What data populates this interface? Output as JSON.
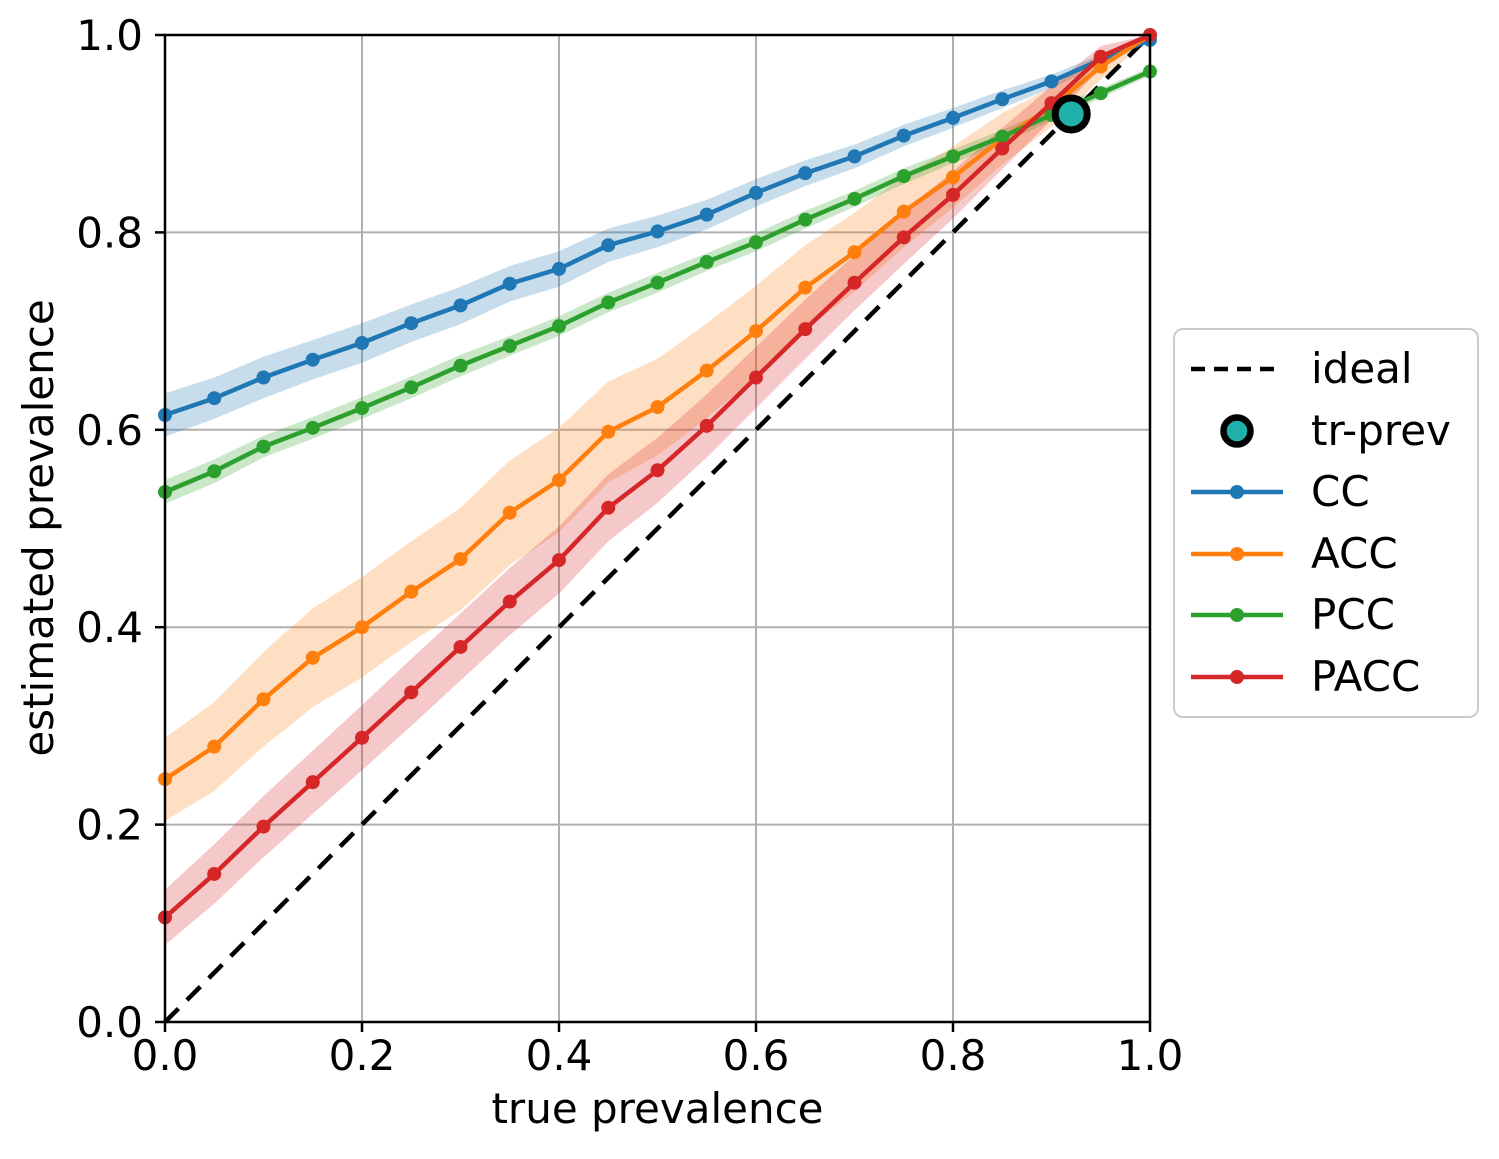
{
  "chart_data": {
    "type": "line",
    "title": "",
    "xlabel": "true prevalence",
    "ylabel": "estimated prevalence",
    "xlim": [
      0.0,
      1.0
    ],
    "ylim": [
      0.0,
      1.0
    ],
    "grid": true,
    "grid_color": "#b0b0b0",
    "axis_color": "#000000",
    "x_ticks": [
      "0.0",
      "0.2",
      "0.4",
      "0.6",
      "0.8",
      "1.0"
    ],
    "y_ticks": [
      "0.0",
      "0.2",
      "0.4",
      "0.6",
      "0.8",
      "1.0"
    ],
    "x": [
      0.0,
      0.05,
      0.1,
      0.15,
      0.2,
      0.25,
      0.3,
      0.35,
      0.4,
      0.45,
      0.5,
      0.55,
      0.6,
      0.65,
      0.7,
      0.75,
      0.8,
      0.85,
      0.9,
      0.95,
      1.0
    ],
    "series": [
      {
        "name": "CC",
        "color": "#1f77b4",
        "values": [
          0.615,
          0.632,
          0.653,
          0.671,
          0.688,
          0.708,
          0.726,
          0.748,
          0.763,
          0.787,
          0.801,
          0.818,
          0.84,
          0.86,
          0.877,
          0.898,
          0.916,
          0.935,
          0.953,
          0.975,
          0.995
        ],
        "band_halfwidth": [
          0.022,
          0.021,
          0.021,
          0.02,
          0.02,
          0.019,
          0.019,
          0.018,
          0.018,
          0.017,
          0.016,
          0.015,
          0.014,
          0.013,
          0.012,
          0.011,
          0.01,
          0.009,
          0.007,
          0.005,
          0.003
        ]
      },
      {
        "name": "ACC",
        "color": "#ff7f0e",
        "values": [
          0.246,
          0.279,
          0.327,
          0.369,
          0.4,
          0.436,
          0.469,
          0.516,
          0.549,
          0.598,
          0.623,
          0.66,
          0.7,
          0.744,
          0.78,
          0.821,
          0.856,
          0.895,
          0.927,
          0.968,
          1.0
        ],
        "band_halfwidth": [
          0.042,
          0.045,
          0.048,
          0.05,
          0.051,
          0.051,
          0.052,
          0.053,
          0.053,
          0.051,
          0.049,
          0.048,
          0.046,
          0.043,
          0.04,
          0.036,
          0.031,
          0.026,
          0.02,
          0.013,
          0.004
        ]
      },
      {
        "name": "PCC",
        "color": "#2ca02c",
        "values": [
          0.537,
          0.558,
          0.583,
          0.602,
          0.622,
          0.643,
          0.665,
          0.685,
          0.705,
          0.729,
          0.749,
          0.77,
          0.79,
          0.813,
          0.834,
          0.857,
          0.877,
          0.897,
          0.919,
          0.941,
          0.963
        ],
        "band_halfwidth": [
          0.012,
          0.012,
          0.011,
          0.011,
          0.011,
          0.011,
          0.011,
          0.01,
          0.01,
          0.01,
          0.01,
          0.009,
          0.009,
          0.009,
          0.008,
          0.008,
          0.007,
          0.007,
          0.006,
          0.005,
          0.004
        ]
      },
      {
        "name": "PACC",
        "color": "#d62728",
        "values": [
          0.106,
          0.15,
          0.198,
          0.243,
          0.288,
          0.334,
          0.38,
          0.426,
          0.468,
          0.521,
          0.559,
          0.604,
          0.653,
          0.702,
          0.749,
          0.795,
          0.838,
          0.885,
          0.931,
          0.978,
          1.0
        ],
        "band_halfwidth": [
          0.028,
          0.03,
          0.031,
          0.032,
          0.033,
          0.034,
          0.034,
          0.034,
          0.034,
          0.034,
          0.033,
          0.032,
          0.031,
          0.03,
          0.028,
          0.027,
          0.024,
          0.021,
          0.017,
          0.011,
          0.004
        ]
      }
    ],
    "ideal_line": {
      "label": "ideal",
      "style": "dashed",
      "color": "#000000",
      "from": [
        0.0,
        0.0
      ],
      "to": [
        1.0,
        1.0
      ]
    },
    "tr_prev_marker": {
      "label": "tr-prev",
      "x": 0.92,
      "y": 0.92,
      "fill": "#20b2aa",
      "edge": "#000000"
    },
    "band_opacity": "0.25",
    "legend_position": "center right, outside axes"
  },
  "legend": {
    "border_color": "#cccccc",
    "entries": [
      {
        "label": "ideal",
        "type": "dashed-line",
        "color": "#000000"
      },
      {
        "label": "tr-prev",
        "type": "circle",
        "color": "#20b2aa"
      },
      {
        "label": "CC",
        "type": "line-dot",
        "color": "#1f77b4"
      },
      {
        "label": "ACC",
        "type": "line-dot",
        "color": "#ff7f0e"
      },
      {
        "label": "PCC",
        "type": "line-dot",
        "color": "#2ca02c"
      },
      {
        "label": "PACC",
        "type": "line-dot",
        "color": "#d62728"
      }
    ]
  }
}
